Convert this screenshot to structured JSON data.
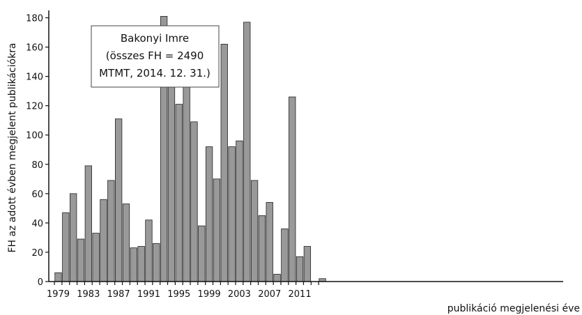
{
  "chart_data": {
    "type": "bar",
    "title": "",
    "xlabel": "publikáció megjelenési éve",
    "ylabel": "FH az adott évben megjelent publikációkra",
    "ylim": [
      0,
      185
    ],
    "yticks": [
      0,
      20,
      40,
      60,
      80,
      100,
      120,
      140,
      160,
      180
    ],
    "xtick_labels": [
      "1979",
      "1983",
      "1987",
      "1991",
      "1995",
      "1999",
      "2003",
      "2007",
      "2011"
    ],
    "grid": false,
    "legend": "none",
    "bar_color": "#999999",
    "annotation": {
      "lines": [
        "Bakonyi Imre",
        "(összes FH = 2490",
        "MTMT, 2014. 12. 31.)"
      ],
      "placement": "top-left"
    },
    "categories": [
      1979,
      1980,
      1981,
      1982,
      1983,
      1984,
      1985,
      1986,
      1987,
      1988,
      1989,
      1990,
      1991,
      1992,
      1993,
      1994,
      1995,
      1996,
      1997,
      1998,
      1999,
      2000,
      2001,
      2002,
      2003,
      2004,
      2005,
      2006,
      2007,
      2008,
      2009,
      2010,
      2011,
      2012,
      2013,
      2014
    ],
    "values": [
      6,
      47,
      60,
      29,
      79,
      33,
      56,
      69,
      111,
      53,
      23,
      24,
      42,
      26,
      181,
      154,
      121,
      161,
      109,
      38,
      92,
      70,
      162,
      92,
      96,
      177,
      69,
      45,
      54,
      5,
      36,
      126,
      17,
      24,
      0,
      2
    ]
  }
}
